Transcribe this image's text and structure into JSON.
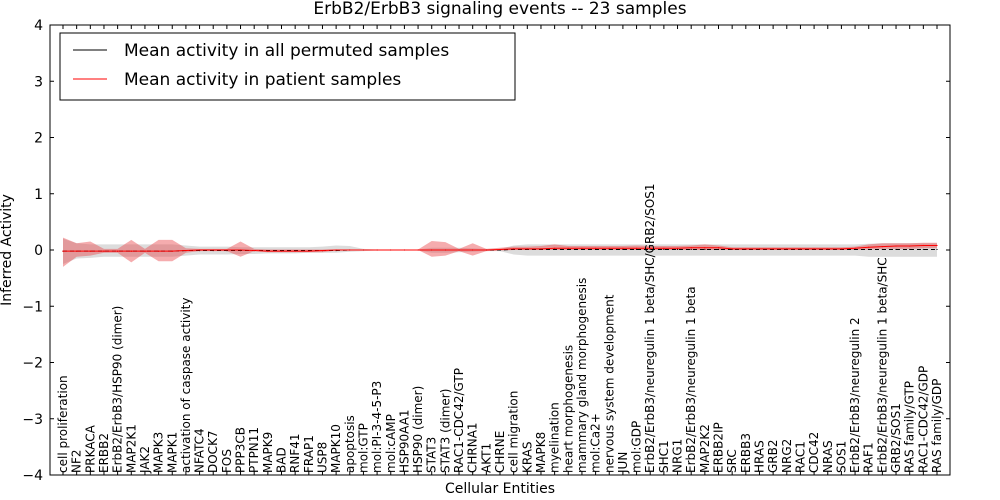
{
  "chart_data": {
    "type": "line",
    "title": "ErbB2/ErbB3 signaling events -- 23 samples",
    "xlabel": "Cellular Entities",
    "ylabel": "Inferred Activity",
    "ylim": [
      -4,
      4
    ],
    "yticks": [
      4,
      3,
      2,
      1,
      0,
      -1,
      -2,
      -3,
      -4
    ],
    "ytick_labels": [
      "4",
      "3",
      "2",
      "1",
      "0",
      "−1",
      "−2",
      "−3",
      "−4"
    ],
    "grid": false,
    "legend_position": "top-left",
    "categories": [
      "cell proliferation",
      "NF2",
      "PRKACA",
      "ERBB2",
      "ErbB2/ErbB3/HSP90 (dimer)",
      "MAP2K1",
      "JAK2",
      "MAPK3",
      "MAPK1",
      "activation of caspase activity",
      "NFATC4",
      "DOCK7",
      "FOS",
      "PPP3CB",
      "PTPN11",
      "MAPK9",
      "BAD",
      "RNF41",
      "FRAP1",
      "USP8",
      "MAPK10",
      "apoptosis",
      "mol:GTP",
      "mol:PI-3-4-5-P3",
      "mol:cAMP",
      "HSP90AA1",
      "HSP90 (dimer)",
      "STAT3",
      "STAT3 (dimer)",
      "RAC1-CDC42/GTP",
      "CHRNA1",
      "AKT1",
      "CHRNE",
      "cell migration",
      "KRAS",
      "MAPK8",
      "myelination",
      "heart morphogenesis",
      "mammary gland morphogenesis",
      "mol:Ca2+",
      "nervous system development",
      "JUN",
      "mol:GDP",
      "ErbB2/ErbB3/neuregulin 1 beta/SHC/GRB2/SOS1",
      "SHC1",
      "NRG1",
      "ErbB2/ErbB3/neuregulin 1 beta",
      "MAP2K2",
      "ERBB2IP",
      "SRC",
      "ERBB3",
      "HRAS",
      "GRB2",
      "NRG2",
      "RAC1",
      "CDC42",
      "NRAS",
      "SOS1",
      "ErbB2/ErbB3/neuregulin 2",
      "RAF1",
      "ErbB2/ErbB3/neuregulin 1 beta/SHC",
      "GRB2/SOS1",
      "RAS family/GTP",
      "RAC1-CDC42/GDP",
      "RAS family/GDP"
    ],
    "series": [
      {
        "name": "Mean activity in all permuted samples",
        "color": "#000000",
        "values": [
          -0.02,
          -0.02,
          -0.02,
          -0.02,
          -0.02,
          -0.02,
          -0.02,
          -0.02,
          -0.02,
          -0.01,
          -0.01,
          -0.01,
          -0.01,
          -0.01,
          -0.01,
          -0.01,
          -0.01,
          -0.01,
          -0.01,
          -0.01,
          -0.01,
          0,
          0,
          0,
          0,
          0,
          0,
          0,
          0,
          0,
          0,
          0,
          0,
          0.01,
          0.01,
          0.01,
          0.01,
          0.01,
          0.01,
          0.01,
          0.01,
          0.01,
          0.01,
          0.01,
          0.01,
          0.01,
          0.01,
          0.01,
          0.01,
          0.01,
          0.01,
          0.01,
          0.01,
          0.01,
          0.01,
          0.01,
          0.01,
          0.01,
          0.01,
          0.01,
          0.01,
          0.01,
          0.01,
          0.01,
          0.01
        ],
        "band_low": [
          -0.25,
          -0.15,
          -0.14,
          -0.12,
          -0.12,
          -0.12,
          -0.12,
          -0.12,
          -0.12,
          -0.1,
          -0.08,
          -0.08,
          -0.08,
          -0.07,
          -0.07,
          -0.06,
          -0.06,
          -0.06,
          -0.05,
          -0.05,
          -0.05,
          -0.03,
          -0.02,
          -0.01,
          -0.01,
          -0.01,
          -0.01,
          -0.05,
          -0.05,
          -0.04,
          -0.03,
          -0.02,
          -0.02,
          -0.08,
          -0.1,
          -0.1,
          -0.1,
          -0.1,
          -0.1,
          -0.1,
          -0.1,
          -0.1,
          -0.1,
          -0.1,
          -0.1,
          -0.1,
          -0.1,
          -0.1,
          -0.1,
          -0.1,
          -0.1,
          -0.1,
          -0.1,
          -0.1,
          -0.1,
          -0.1,
          -0.1,
          -0.1,
          -0.1,
          -0.12,
          -0.12,
          -0.12,
          -0.12,
          -0.12,
          -0.12
        ],
        "band_high": [
          0.2,
          0.12,
          0.1,
          0.1,
          0.1,
          0.1,
          0.1,
          0.1,
          0.1,
          0.08,
          0.06,
          0.06,
          0.06,
          0.05,
          0.05,
          0.05,
          0.05,
          0.05,
          0.05,
          0.06,
          0.08,
          0.07,
          0.02,
          0.01,
          0.01,
          0.01,
          0.01,
          0.04,
          0.04,
          0.04,
          0.03,
          0.02,
          0.02,
          0.08,
          0.1,
          0.1,
          0.1,
          0.1,
          0.1,
          0.1,
          0.1,
          0.1,
          0.1,
          0.1,
          0.1,
          0.1,
          0.1,
          0.1,
          0.1,
          0.1,
          0.1,
          0.1,
          0.1,
          0.1,
          0.1,
          0.1,
          0.1,
          0.1,
          0.1,
          0.11,
          0.12,
          0.12,
          0.12,
          0.12,
          0.12
        ]
      },
      {
        "name": "Mean activity in patient samples",
        "color": "#ff0000",
        "values": [
          -0.02,
          -0.02,
          -0.02,
          -0.02,
          -0.02,
          -0.02,
          -0.02,
          -0.02,
          -0.02,
          -0.01,
          0,
          0,
          0,
          0,
          -0.01,
          -0.02,
          -0.02,
          -0.02,
          -0.02,
          -0.01,
          0,
          0,
          0,
          0,
          0,
          0,
          0,
          0,
          0,
          0,
          0,
          0,
          0.01,
          0.02,
          0.02,
          0.02,
          0.03,
          0.03,
          0.03,
          0.03,
          0.03,
          0.03,
          0.03,
          0.03,
          0.03,
          0.03,
          0.04,
          0.04,
          0.04,
          0.02,
          0.02,
          0.02,
          0.02,
          0.02,
          0.02,
          0.02,
          0.02,
          0.02,
          0.03,
          0.05,
          0.06,
          0.07,
          0.07,
          0.08,
          0.08
        ],
        "band_low": [
          -0.3,
          -0.12,
          -0.1,
          -0.05,
          -0.05,
          -0.22,
          -0.05,
          -0.2,
          -0.2,
          -0.05,
          -0.02,
          -0.02,
          -0.02,
          -0.12,
          -0.02,
          -0.04,
          -0.04,
          -0.04,
          -0.04,
          -0.04,
          -0.01,
          -0.01,
          0,
          0,
          0,
          0,
          0,
          -0.12,
          -0.1,
          -0.02,
          -0.1,
          -0.02,
          -0.01,
          0,
          0,
          0,
          0,
          0,
          0,
          0,
          0,
          0,
          0,
          0,
          0,
          0,
          0,
          0,
          0,
          0,
          0,
          0,
          0,
          0,
          0,
          0,
          0,
          0,
          0,
          0.01,
          0.02,
          0.02,
          0.02,
          0.03,
          0.03
        ],
        "band_high": [
          0.22,
          0.12,
          0.15,
          0.02,
          0.02,
          0.18,
          0.02,
          0.18,
          0.18,
          0.03,
          0.02,
          0.02,
          0.02,
          0.15,
          0.02,
          0.01,
          0.01,
          0.01,
          0.01,
          0.01,
          0.01,
          0.01,
          0.01,
          0.01,
          0.01,
          0.01,
          0.01,
          0.16,
          0.14,
          0.02,
          0.12,
          0.02,
          0.04,
          0.06,
          0.06,
          0.07,
          0.1,
          0.07,
          0.07,
          0.07,
          0.07,
          0.07,
          0.08,
          0.07,
          0.07,
          0.07,
          0.08,
          0.1,
          0.08,
          0.05,
          0.05,
          0.05,
          0.05,
          0.05,
          0.05,
          0.05,
          0.05,
          0.05,
          0.06,
          0.1,
          0.12,
          0.12,
          0.12,
          0.13,
          0.13
        ]
      }
    ]
  }
}
